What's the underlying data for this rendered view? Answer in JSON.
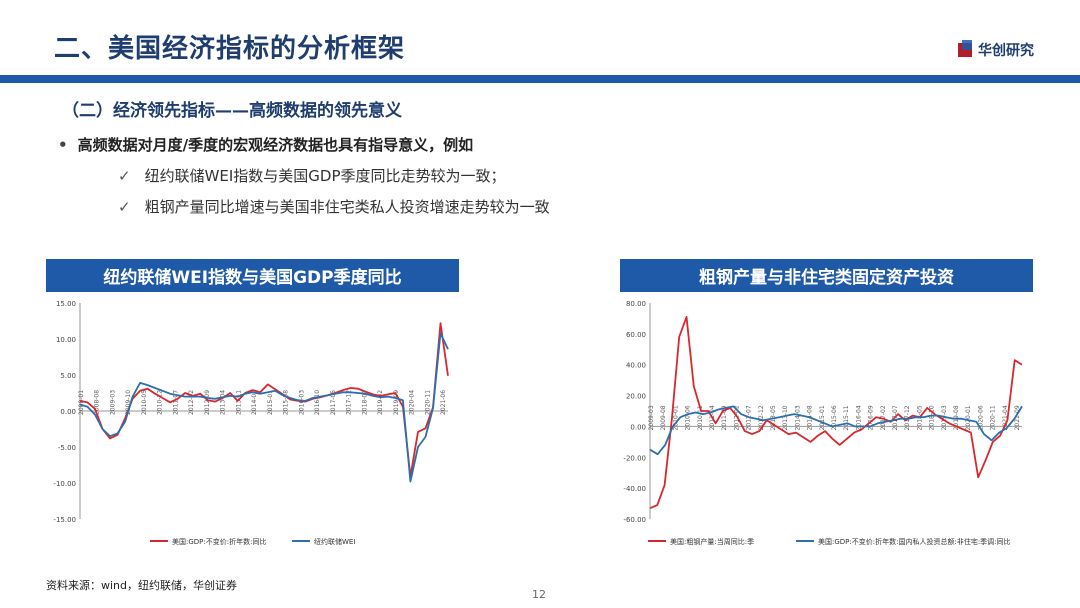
{
  "header": {
    "title": "二、美国经济指标的分析框架",
    "logo_text": "华创研究",
    "accent_color": "#1f5aa8",
    "title_color": "#1f3d6e"
  },
  "section": {
    "subtitle": "（二）经济领先指标——高频数据的领先意义",
    "bullet": "高频数据对月度/季度的宏观经济数据也具有指导意义，例如",
    "checks": [
      "纽约联储WEI指数与美国GDP季度同比走势较为一致；",
      "粗钢产量同比增速与美国非住宅类私人投资增速走势较为一致"
    ]
  },
  "footer": {
    "source": "资料来源：wind，纽约联储，华创证券",
    "page_number": "12"
  },
  "chart_data": [
    {
      "type": "line",
      "title": "纽约联储WEI指数与美国GDP季度同比",
      "ylim": [
        -15,
        15
      ],
      "yticks": [
        "15.00",
        "10.00",
        "5.00",
        "0.00",
        "-5.00",
        "-10.00",
        "-15.00"
      ],
      "x_tick_labels": [
        "2008-01",
        "2008-08",
        "2009-03",
        "2009-10",
        "2010-05",
        "2010-12",
        "2011-07",
        "2012-02",
        "2012-09",
        "2013-04",
        "2013-11",
        "2014-06",
        "2015-01",
        "2015-08",
        "2016-03",
        "2016-10",
        "2017-05",
        "2017-12",
        "2018-07",
        "2019-02",
        "2019-09",
        "2020-04",
        "2020-11",
        "2021-06"
      ],
      "legend_placement": "bottom",
      "grid": false,
      "series": [
        {
          "name": "美国:GDP:不变价:折年数:同比",
          "color": "#d9272e",
          "values": [
            1.4,
            1.2,
            0.3,
            -2.5,
            -3.8,
            -3.3,
            -1.0,
            1.7,
            2.8,
            3.1,
            2.4,
            1.8,
            1.2,
            1.7,
            2.5,
            2.1,
            2.4,
            1.5,
            1.3,
            1.8,
            2.5,
            1.4,
            2.5,
            2.9,
            2.6,
            3.7,
            3.0,
            2.3,
            1.6,
            1.4,
            1.3,
            1.7,
            1.9,
            2.2,
            2.5,
            2.9,
            3.2,
            3.1,
            2.7,
            2.3,
            2.1,
            2.3,
            2.5,
            0.6,
            -9.1,
            -2.9,
            -2.4,
            0.5,
            12.2,
            4.9
          ]
        },
        {
          "name": "纽约联储WEI",
          "color": "#2c6fad",
          "values": [
            0.9,
            0.6,
            -0.5,
            -2.5,
            -3.5,
            -3.1,
            -1.5,
            2.0,
            3.9,
            3.6,
            3.2,
            2.8,
            2.4,
            2.2,
            2.0,
            2.0,
            2.0,
            1.8,
            1.7,
            1.9,
            2.1,
            2.0,
            2.4,
            2.6,
            2.4,
            2.6,
            2.8,
            2.2,
            1.8,
            1.5,
            1.4,
            1.8,
            2.0,
            2.2,
            2.4,
            2.6,
            2.6,
            2.5,
            2.4,
            2.1,
            1.9,
            2.0,
            1.8,
            1.5,
            -9.8,
            -5.0,
            -3.6,
            0.4,
            10.8,
            8.6
          ]
        }
      ]
    },
    {
      "type": "line",
      "title": "粗钢产量与非住宅类固定资产投资",
      "ylim": [
        -60,
        80
      ],
      "yticks": [
        "80.00",
        "60.00",
        "40.00",
        "20.00",
        "0.00",
        "-20.00",
        "-40.00",
        "-60.00"
      ],
      "x_tick_labels": [
        "2009-03",
        "2009-08",
        "2010-01",
        "2010-06",
        "2010-11",
        "2011-04",
        "2011-09",
        "2012-02",
        "2012-07",
        "2012-12",
        "2013-05",
        "2013-10",
        "2014-03",
        "2014-08",
        "2015-01",
        "2015-06",
        "2015-11",
        "2016-04",
        "2016-09",
        "2017-02",
        "2017-07",
        "2017-12",
        "2018-05",
        "2018-10",
        "2019-03",
        "2019-08",
        "2020-01",
        "2020-06",
        "2020-11",
        "2021-04",
        "2021-09"
      ],
      "legend_placement": "bottom",
      "grid": false,
      "series": [
        {
          "name": "美国:粗钢产量:当周同比:季",
          "color": "#d9272e",
          "values": [
            -53,
            -51,
            -38,
            5,
            58,
            71,
            26,
            10,
            10,
            2,
            10,
            12,
            6,
            -3,
            -5,
            -3,
            4,
            1,
            -2,
            -5,
            -4,
            -7,
            -10,
            -6,
            -3,
            -8,
            -12,
            -8,
            -4,
            -2,
            2,
            6,
            5,
            3,
            8,
            4,
            7,
            6,
            12,
            8,
            5,
            2,
            0,
            -2,
            -4,
            -33,
            -22,
            -10,
            -6,
            4,
            43,
            40
          ]
        },
        {
          "name": "美国:GDP:不变价:折年数:国内私人投资总额:非住宅:季调:同比",
          "color": "#2c6fad",
          "values": [
            -15,
            -18,
            -12,
            0,
            6,
            8,
            9,
            8,
            9,
            11,
            12,
            13,
            8,
            6,
            5,
            4,
            5,
            6,
            7,
            8,
            7,
            6,
            4,
            2,
            0,
            1,
            2,
            0,
            0,
            0,
            2,
            3,
            4,
            5,
            5,
            6,
            6,
            7,
            7,
            6,
            5,
            5,
            4,
            3,
            -5,
            -9,
            -4,
            -1,
            5,
            13
          ]
        }
      ]
    }
  ]
}
